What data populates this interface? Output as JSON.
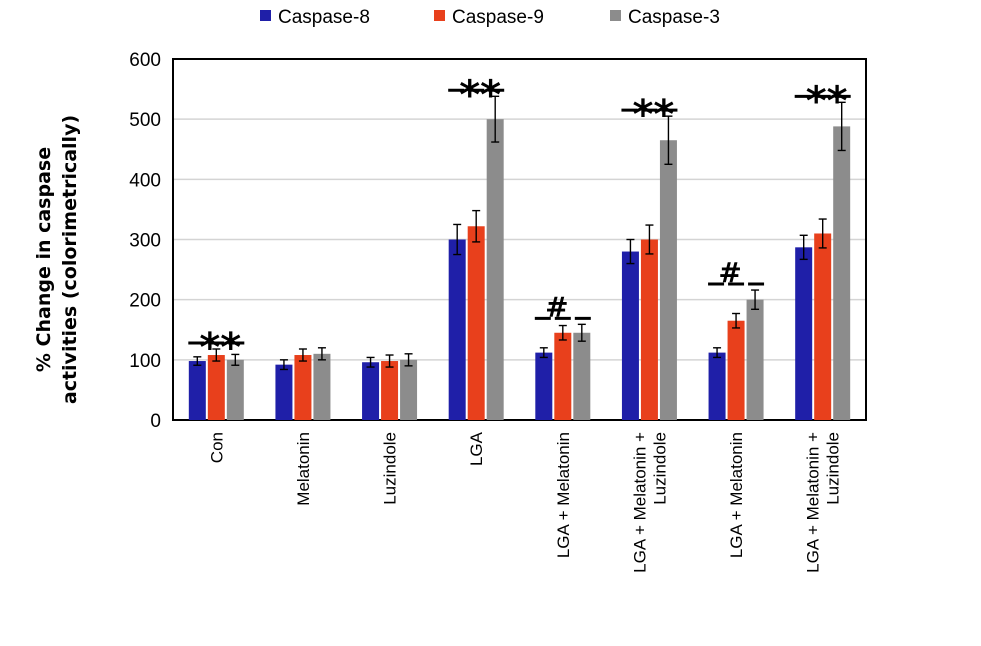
{
  "chart_data": {
    "type": "bar",
    "ylabel_lines": [
      "% Change in caspase",
      "activities (colorimetrically)"
    ],
    "xlabel": "",
    "ylim": [
      0,
      600
    ],
    "yticks": [
      "0",
      "100",
      "200",
      "300",
      "400",
      "500",
      "600"
    ],
    "grid": true,
    "legend_position": "top",
    "categories": [
      [
        "Con"
      ],
      [
        "Melatonin"
      ],
      [
        "Luzindole"
      ],
      [
        "LGA"
      ],
      [
        "LGA + Melatonin"
      ],
      [
        "LGA + Melatonin +",
        "Luzindole"
      ],
      [
        "LGA + Melatonin"
      ],
      [
        "LGA + Melatonin +",
        "Luzindole"
      ]
    ],
    "series": [
      {
        "name": "Caspase-8",
        "color": "#1f1fa8",
        "values": [
          98,
          92,
          96,
          300,
          112,
          280,
          112,
          287
        ],
        "errors": [
          7,
          8,
          8,
          25,
          8,
          20,
          8,
          20
        ]
      },
      {
        "name": "Caspase-9",
        "color": "#e8401c",
        "values": [
          108,
          108,
          98,
          322,
          145,
          300,
          165,
          310
        ],
        "errors": [
          10,
          10,
          10,
          26,
          12,
          24,
          12,
          24
        ]
      },
      {
        "name": "Caspase-3",
        "color": "#8c8c8c",
        "values": [
          100,
          110,
          100,
          500,
          145,
          465,
          200,
          488
        ],
        "errors": [
          9,
          10,
          10,
          38,
          14,
          40,
          16,
          40
        ]
      }
    ],
    "annotations": [
      "**",
      "",
      "",
      "**",
      "#",
      "**",
      "#",
      "**"
    ]
  }
}
